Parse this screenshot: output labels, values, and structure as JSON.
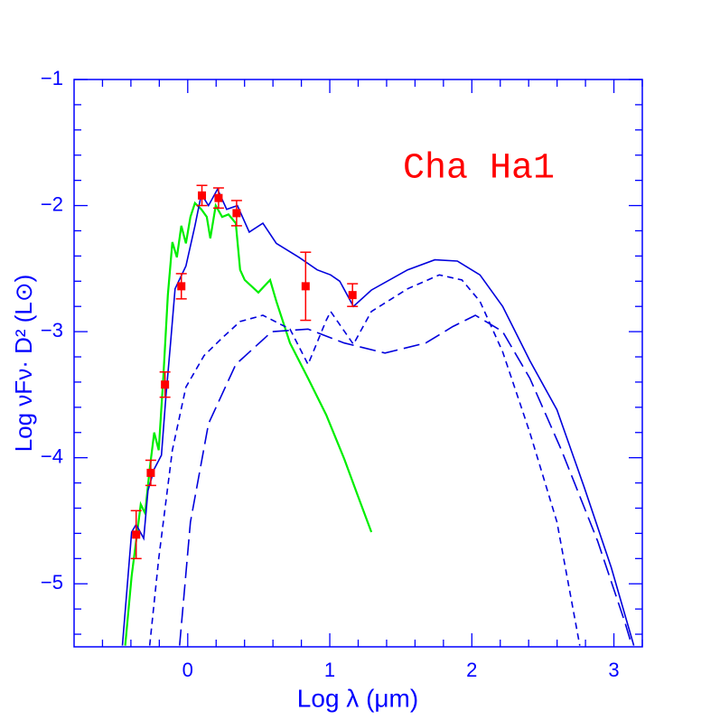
{
  "chart_data": {
    "type": "line",
    "annotation": "Cha Ha1",
    "annotation_color": "#ff0000",
    "axis_color": "#0000ff",
    "xlabel": "Log λ (μm)",
    "ylabel": "Log νFν· D²  (L⊙)",
    "xlim": [
      -0.8,
      3.2
    ],
    "ylim": [
      -5.5,
      -1
    ],
    "xticks": [
      0,
      1,
      2,
      3
    ],
    "yticks": [
      {
        "value": -1,
        "label": "−1"
      },
      {
        "value": -2,
        "label": "−2"
      },
      {
        "value": -3,
        "label": "−3"
      },
      {
        "value": -4,
        "label": "−4"
      },
      {
        "value": -5,
        "label": "−5"
      }
    ],
    "minor_xticks": [
      -0.6,
      -0.4,
      -0.2,
      0.2,
      0.4,
      0.6,
      0.8,
      1.2,
      1.4,
      1.6,
      1.8,
      2.2,
      2.4,
      2.6,
      2.8,
      3.2
    ],
    "minor_yticks": [
      -1.2,
      -1.4,
      -1.6,
      -1.8,
      -2.2,
      -2.4,
      -2.6,
      -2.8,
      -3.2,
      -3.4,
      -3.6,
      -3.8,
      -4.2,
      -4.4,
      -4.6,
      -4.8,
      -5.2,
      -5.4
    ],
    "series": [
      {
        "color": "#00ee00",
        "linestyle": "solid",
        "x": [
          -0.44,
          -0.395,
          -0.363,
          -0.331,
          -0.3,
          -0.268,
          -0.236,
          -0.204,
          -0.172,
          -0.14,
          -0.108,
          -0.076,
          -0.045,
          -0.013,
          0.019,
          0.051,
          0.096,
          0.134,
          0.159,
          0.197,
          0.242,
          0.287,
          0.338,
          0.369,
          0.401,
          0.497,
          0.58,
          0.624,
          0.72,
          0.847,
          0.975,
          1.102,
          1.197,
          1.293
        ],
        "values": [
          -5.49,
          -4.94,
          -4.66,
          -4.37,
          -4.44,
          -4.09,
          -3.8,
          -3.94,
          -3.36,
          -2.71,
          -2.29,
          -2.41,
          -2.16,
          -2.3,
          -2.09,
          -1.98,
          -2.03,
          -2.09,
          -2.26,
          -2.0,
          -2.09,
          -2.07,
          -2.14,
          -2.51,
          -2.59,
          -2.69,
          -2.59,
          -2.76,
          -3.09,
          -3.37,
          -3.66,
          -4.01,
          -4.3,
          -4.59
        ]
      },
      {
        "color": "#0000dd",
        "linestyle": "solid",
        "x": [
          -0.46,
          -0.395,
          -0.363,
          -0.31,
          -0.28,
          -0.236,
          -0.185,
          -0.153,
          -0.121,
          -0.089,
          -0.013,
          0.051,
          0.096,
          0.146,
          0.21,
          0.274,
          0.35,
          0.433,
          0.529,
          0.624,
          0.783,
          0.911,
          1.006,
          1.07,
          1.166,
          1.293,
          1.548,
          1.739,
          1.898,
          2.057,
          2.217,
          2.408,
          2.599,
          2.79,
          2.981,
          3.14
        ],
        "values": [
          -5.49,
          -4.59,
          -4.53,
          -4.64,
          -4.26,
          -4.09,
          -3.98,
          -3.51,
          -3.09,
          -2.66,
          -2.48,
          -2.16,
          -1.91,
          -2.0,
          -1.87,
          -2.03,
          -2.0,
          -2.21,
          -2.14,
          -2.3,
          -2.41,
          -2.51,
          -2.55,
          -2.6,
          -2.8,
          -2.67,
          -2.51,
          -2.43,
          -2.44,
          -2.55,
          -2.8,
          -3.23,
          -3.62,
          -4.23,
          -4.87,
          -5.49
        ]
      },
      {
        "color": "#0000dd",
        "linestyle": "short",
        "x": [
          -0.268,
          -0.204,
          -0.108,
          -0.013,
          0.115,
          0.242,
          0.369,
          0.529,
          0.72,
          0.847,
          0.975,
          1.006,
          1.166,
          1.293,
          1.548,
          1.771,
          1.93,
          2.057,
          2.217,
          2.408,
          2.599,
          2.76
        ],
        "values": [
          -5.49,
          -4.8,
          -3.94,
          -3.44,
          -3.19,
          -3.05,
          -2.92,
          -2.87,
          -2.98,
          -3.26,
          -2.91,
          -2.84,
          -3.1,
          -2.84,
          -2.66,
          -2.55,
          -2.59,
          -2.76,
          -3.16,
          -3.8,
          -4.51,
          -5.49
        ]
      },
      {
        "color": "#0000dd",
        "linestyle": "long",
        "x": [
          -0.057,
          0.019,
          0.146,
          0.338,
          0.592,
          0.847,
          1.102,
          1.389,
          1.675,
          1.866,
          2.025,
          2.217,
          2.408,
          2.631,
          2.885,
          3.076,
          3.127
        ],
        "values": [
          -5.49,
          -4.51,
          -3.73,
          -3.26,
          -3.0,
          -2.98,
          -3.09,
          -3.17,
          -3.09,
          -2.96,
          -2.87,
          -3.0,
          -3.37,
          -3.94,
          -4.66,
          -5.3,
          -5.49
        ]
      },
      {
        "color": "#ff0000",
        "marker": "square",
        "x": [
          -0.363,
          -0.26,
          -0.16,
          -0.045,
          0.1,
          0.217,
          0.344,
          0.83,
          1.16
        ],
        "values": [
          -4.61,
          -4.12,
          -3.42,
          -2.64,
          -1.92,
          -1.94,
          -2.06,
          -2.64,
          -2.71
        ],
        "errors": [
          0.19,
          0.1,
          0.1,
          0.1,
          0.08,
          0.08,
          0.1,
          0.27,
          0.09
        ]
      }
    ]
  }
}
